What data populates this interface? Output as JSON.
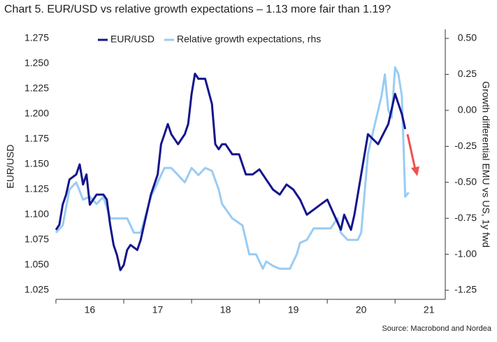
{
  "chart_data": {
    "type": "line",
    "title": "Chart 5. EUR/USD vs relative growth expectations – 1.13 more fair than 1.19?",
    "ylabel": "EUR/USD",
    "y2label": "Growth differential EMU vs US, 1y fwd",
    "source": "Source: Macrobond and Nordea",
    "xlim": [
      2016,
      2021.74
    ],
    "xticks": [
      {
        "value": 2016.5,
        "label": "16"
      },
      {
        "value": 2017.5,
        "label": "17"
      },
      {
        "value": 2018.5,
        "label": "18"
      },
      {
        "value": 2019.5,
        "label": "19"
      },
      {
        "value": 2020.5,
        "label": "20"
      },
      {
        "value": 2021.5,
        "label": "21"
      }
    ],
    "xtick_marks": [
      2016,
      2017,
      2018,
      2019,
      2020,
      2021
    ],
    "ylim": [
      1.016,
      1.284
    ],
    "yticks": [
      {
        "value": 1.025,
        "label": "1.025"
      },
      {
        "value": 1.05,
        "label": "1.050"
      },
      {
        "value": 1.075,
        "label": "1.075"
      },
      {
        "value": 1.1,
        "label": "1.100"
      },
      {
        "value": 1.125,
        "label": "1.125"
      },
      {
        "value": 1.15,
        "label": "1.150"
      },
      {
        "value": 1.175,
        "label": "1.175"
      },
      {
        "value": 1.2,
        "label": "1.200"
      },
      {
        "value": 1.225,
        "label": "1.225"
      },
      {
        "value": 1.25,
        "label": "1.250"
      },
      {
        "value": 1.275,
        "label": "1.275"
      }
    ],
    "y2lim": [
      -1.313,
      0.563
    ],
    "y2ticks": [
      {
        "value": -1.25,
        "label": "-1.25"
      },
      {
        "value": -1,
        "label": "-1.00"
      },
      {
        "value": -0.75,
        "label": "-0.75"
      },
      {
        "value": -0.5,
        "label": "-0.50"
      },
      {
        "value": -0.25,
        "label": "-0.25"
      },
      {
        "value": 0,
        "label": "0.00"
      },
      {
        "value": 0.25,
        "label": "0.25"
      },
      {
        "value": 0.5,
        "label": "0.50"
      }
    ],
    "series": [
      {
        "name": "EUR/USD",
        "color": "#14148c",
        "x": [
          2016.0,
          2016.05,
          2016.1,
          2016.15,
          2016.2,
          2016.3,
          2016.35,
          2016.4,
          2016.45,
          2016.5,
          2016.55,
          2016.6,
          2016.7,
          2016.75,
          2016.8,
          2016.85,
          2016.9,
          2016.95,
          2017.0,
          2017.05,
          2017.1,
          2017.2,
          2017.25,
          2017.3,
          2017.4,
          2017.5,
          2017.55,
          2017.6,
          2017.65,
          2017.7,
          2017.8,
          2017.9,
          2017.95,
          2018.0,
          2018.05,
          2018.1,
          2018.2,
          2018.3,
          2018.35,
          2018.4,
          2018.45,
          2018.5,
          2018.6,
          2018.7,
          2018.8,
          2018.9,
          2019.0,
          2019.1,
          2019.2,
          2019.3,
          2019.4,
          2019.5,
          2019.6,
          2019.7,
          2019.8,
          2019.9,
          2020.0,
          2020.1,
          2020.2,
          2020.25,
          2020.35,
          2020.4,
          2020.5,
          2020.6,
          2020.75,
          2020.9,
          2021.0,
          2021.05,
          2021.1,
          2021.15
        ],
        "values": [
          1.085,
          1.09,
          1.11,
          1.12,
          1.135,
          1.14,
          1.15,
          1.13,
          1.14,
          1.11,
          1.115,
          1.12,
          1.12,
          1.115,
          1.09,
          1.07,
          1.06,
          1.045,
          1.05,
          1.065,
          1.07,
          1.065,
          1.075,
          1.09,
          1.12,
          1.14,
          1.17,
          1.18,
          1.19,
          1.18,
          1.17,
          1.18,
          1.19,
          1.22,
          1.24,
          1.235,
          1.235,
          1.21,
          1.17,
          1.165,
          1.17,
          1.17,
          1.16,
          1.16,
          1.14,
          1.14,
          1.145,
          1.135,
          1.125,
          1.12,
          1.13,
          1.125,
          1.115,
          1.1,
          1.105,
          1.11,
          1.115,
          1.1,
          1.085,
          1.1,
          1.085,
          1.1,
          1.14,
          1.18,
          1.17,
          1.19,
          1.22,
          1.21,
          1.2,
          1.185
        ]
      },
      {
        "name": "Relative growth expectations, rhs",
        "color": "#99ccf3",
        "axis": "y2",
        "x": [
          2016.0,
          2016.1,
          2016.2,
          2016.3,
          2016.4,
          2016.5,
          2016.6,
          2016.7,
          2016.8,
          2016.95,
          2017.05,
          2017.15,
          2017.25,
          2017.4,
          2017.5,
          2017.6,
          2017.7,
          2017.8,
          2017.9,
          2018.0,
          2018.1,
          2018.2,
          2018.3,
          2018.4,
          2018.45,
          2018.6,
          2018.75,
          2018.85,
          2018.95,
          2019.05,
          2019.1,
          2019.2,
          2019.3,
          2019.45,
          2019.55,
          2019.6,
          2019.7,
          2019.8,
          2019.95,
          2020.05,
          2020.15,
          2020.2,
          2020.3,
          2020.45,
          2020.5,
          2020.6,
          2020.7,
          2020.8,
          2020.85,
          2020.9,
          2020.95,
          2021.0,
          2021.05,
          2021.1,
          2021.15,
          2021.2
        ],
        "values": [
          -0.85,
          -0.8,
          -0.55,
          -0.5,
          -0.62,
          -0.6,
          -0.65,
          -0.6,
          -0.75,
          -0.75,
          -0.75,
          -0.85,
          -0.85,
          -0.6,
          -0.5,
          -0.4,
          -0.4,
          -0.45,
          -0.5,
          -0.4,
          -0.45,
          -0.4,
          -0.42,
          -0.55,
          -0.65,
          -0.75,
          -0.8,
          -1.0,
          -1.0,
          -1.1,
          -1.05,
          -1.08,
          -1.1,
          -1.1,
          -1.0,
          -0.92,
          -0.9,
          -0.82,
          -0.82,
          -0.82,
          -0.75,
          -0.85,
          -0.9,
          -0.9,
          -0.85,
          -0.3,
          -0.1,
          0.1,
          0.25,
          0.0,
          -0.05,
          0.3,
          0.25,
          0.1,
          -0.6,
          -0.57
        ]
      }
    ]
  }
}
